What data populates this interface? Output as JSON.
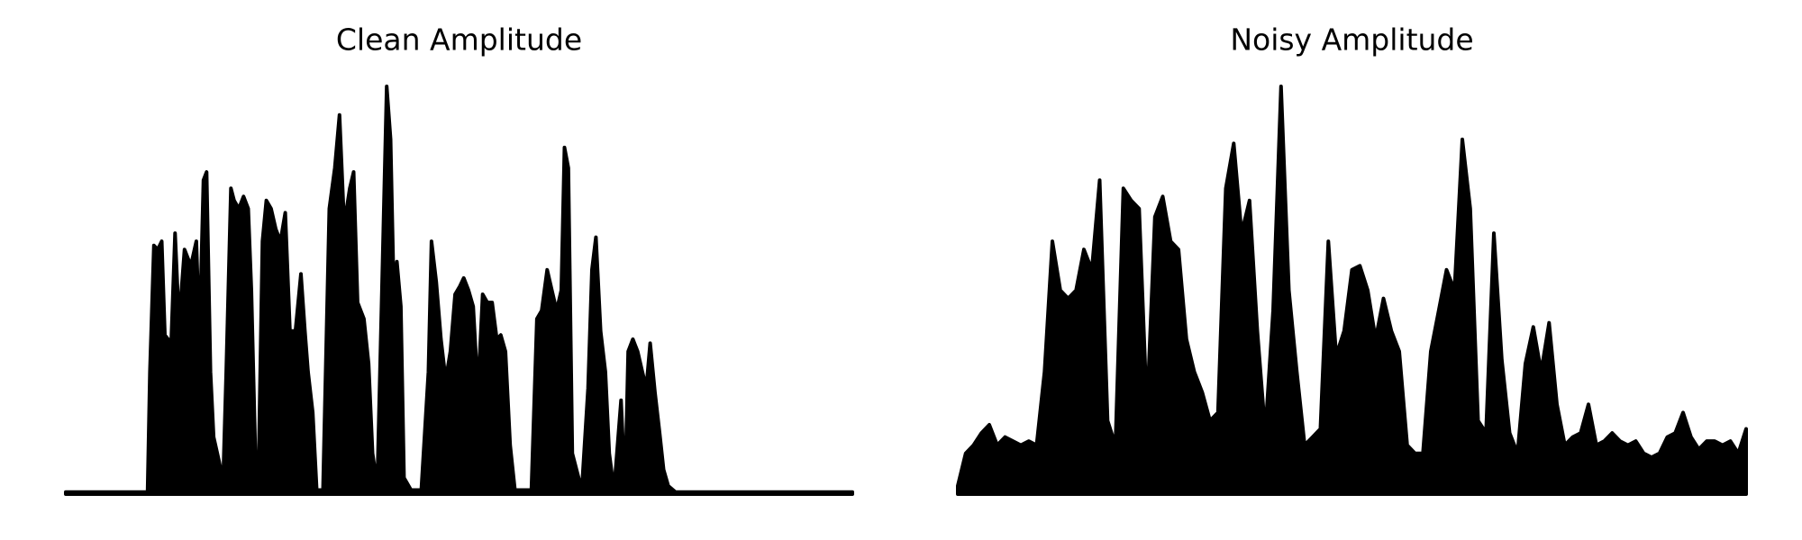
{
  "chart_data": [
    {
      "type": "area",
      "title": "Clean Amplitude",
      "color": "#000000",
      "xlim": [
        0,
        100
      ],
      "ylim": [
        0,
        1
      ],
      "x": [
        0,
        10.4,
        10.7,
        11.2,
        11.7,
        12.2,
        12.6,
        13.4,
        13.9,
        14.4,
        15.1,
        15.9,
        16.6,
        17.0,
        17.5,
        17.9,
        18.4,
        18.8,
        19.5,
        20.0,
        20.4,
        21.0,
        21.4,
        22.0,
        22.6,
        23.2,
        23.6,
        24.1,
        24.5,
        25.0,
        25.5,
        26.1,
        26.7,
        27.3,
        27.9,
        28.5,
        29.2,
        29.9,
        30.4,
        30.8,
        31.4,
        31.9,
        32.7,
        33.5,
        34.2,
        34.8,
        35.4,
        36.1,
        36.6,
        37.1,
        37.9,
        38.5,
        39.0,
        39.6,
        40.2,
        40.8,
        41.3,
        41.7,
        42.1,
        42.6,
        43.0,
        43.9,
        45.2,
        46.1,
        46.5,
        47.1,
        47.7,
        48.3,
        48.9,
        49.5,
        50.1,
        50.6,
        51.2,
        51.8,
        52.4,
        53.0,
        53.6,
        54.2,
        54.8,
        55.3,
        55.9,
        56.5,
        57.1,
        59.2,
        59.9,
        60.5,
        61.2,
        61.8,
        62.4,
        63.0,
        63.4,
        63.9,
        64.4,
        65.6,
        66.4,
        66.9,
        67.4,
        68.0,
        68.6,
        69.1,
        69.7,
        70.6,
        71.1,
        71.5,
        72.1,
        72.7,
        73.3,
        73.8,
        74.3,
        74.9,
        75.5,
        76.0,
        76.6,
        77.5,
        100
      ],
      "values": [
        0.005,
        0.005,
        0.3,
        0.61,
        0.6,
        0.62,
        0.39,
        0.37,
        0.64,
        0.42,
        0.6,
        0.56,
        0.62,
        0.38,
        0.77,
        0.79,
        0.3,
        0.14,
        0.08,
        0.03,
        0.3,
        0.75,
        0.72,
        0.7,
        0.73,
        0.7,
        0.5,
        0.1,
        0.05,
        0.62,
        0.72,
        0.7,
        0.65,
        0.62,
        0.69,
        0.4,
        0.4,
        0.54,
        0.4,
        0.3,
        0.2,
        0.01,
        0.01,
        0.7,
        0.8,
        0.93,
        0.66,
        0.75,
        0.79,
        0.47,
        0.43,
        0.32,
        0.1,
        0.02,
        0.5,
        1.0,
        0.87,
        0.5,
        0.57,
        0.46,
        0.04,
        0.01,
        0.01,
        0.3,
        0.62,
        0.52,
        0.38,
        0.28,
        0.35,
        0.49,
        0.51,
        0.53,
        0.5,
        0.46,
        0.25,
        0.49,
        0.47,
        0.47,
        0.38,
        0.39,
        0.35,
        0.12,
        0.01,
        0.01,
        0.43,
        0.45,
        0.55,
        0.5,
        0.45,
        0.5,
        0.85,
        0.8,
        0.1,
        0.01,
        0.26,
        0.55,
        0.63,
        0.4,
        0.3,
        0.1,
        0.01,
        0.23,
        0.01,
        0.35,
        0.38,
        0.35,
        0.3,
        0.26,
        0.37,
        0.25,
        0.15,
        0.06,
        0.02,
        0.005,
        0.005
      ]
    },
    {
      "type": "area",
      "title": "Noisy Amplitude",
      "color": "#000000",
      "ylim": [
        0,
        1
      ],
      "values": [
        0.02,
        0.1,
        0.12,
        0.15,
        0.17,
        0.12,
        0.14,
        0.13,
        0.12,
        0.13,
        0.12,
        0.3,
        0.62,
        0.5,
        0.48,
        0.5,
        0.6,
        0.55,
        0.77,
        0.18,
        0.12,
        0.75,
        0.72,
        0.7,
        0.2,
        0.68,
        0.73,
        0.62,
        0.6,
        0.38,
        0.3,
        0.25,
        0.18,
        0.2,
        0.75,
        0.86,
        0.64,
        0.72,
        0.4,
        0.15,
        0.45,
        1.0,
        0.5,
        0.3,
        0.12,
        0.14,
        0.16,
        0.62,
        0.34,
        0.4,
        0.55,
        0.56,
        0.5,
        0.38,
        0.48,
        0.4,
        0.35,
        0.12,
        0.1,
        0.1,
        0.35,
        0.45,
        0.55,
        0.5,
        0.87,
        0.7,
        0.18,
        0.15,
        0.64,
        0.33,
        0.15,
        0.1,
        0.32,
        0.41,
        0.3,
        0.42,
        0.22,
        0.12,
        0.14,
        0.15,
        0.22,
        0.12,
        0.13,
        0.15,
        0.13,
        0.12,
        0.13,
        0.1,
        0.09,
        0.1,
        0.14,
        0.15,
        0.2,
        0.14,
        0.11,
        0.13,
        0.13,
        0.12,
        0.13,
        0.1,
        0.16
      ]
    }
  ]
}
